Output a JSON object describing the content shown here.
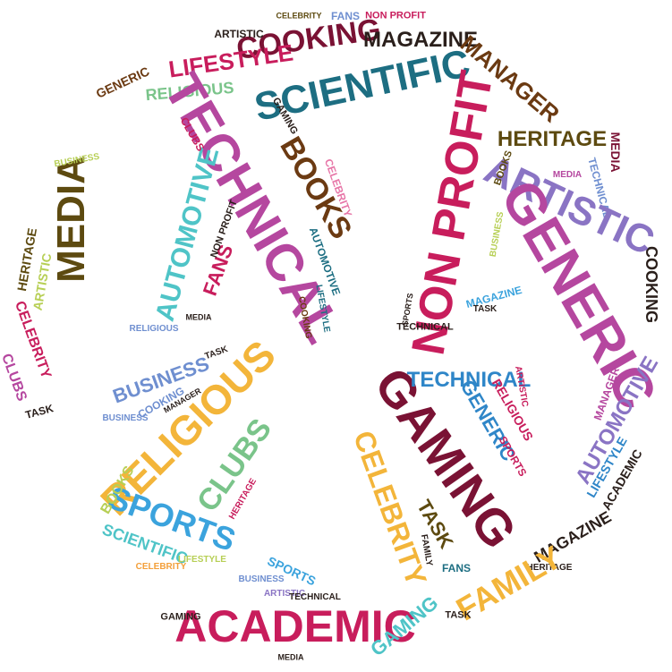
{
  "words": {
    "gaming": "GAMING",
    "academic": "ACADEMIC",
    "family": "FAMILY",
    "sports": "SPORTS",
    "religious": "RELIGIOUS",
    "clubs": "CLUBS",
    "business": "BUSINESS",
    "scientific": "SCIENTIFIC",
    "technical": "TECHNICAL",
    "generic": "GENERIC",
    "non_profit": "NON PROFIT",
    "artistic": "ARTISTIC",
    "heritage": "HERITAGE",
    "manager": "MANAGER",
    "magazine": "MAGAZINE",
    "cooking": "COOKING",
    "lifestyle": "LIFESTYLE",
    "books": "BOOKS",
    "automotive": "AUTOMOTIVE",
    "fans": "FANS",
    "media": "MEDIA",
    "celebrity": "CELEBRITY",
    "task": "TASK"
  },
  "colors": {
    "maroon": "#7a1234",
    "crimson": "#c81d5c",
    "magenta": "#b5479f",
    "lilac": "#8a74c4",
    "periwinkle": "#6f8fd0",
    "blue": "#2f86c8",
    "sky": "#3ba3dd",
    "teal": "#1d6e82",
    "aqua": "#4fc4c7",
    "green": "#7ac48a",
    "lime": "#b7cf55",
    "gold": "#f3b53a",
    "olive": "#5d4a10",
    "brown": "#6b3a12",
    "dark": "#2a1f1b",
    "orange": "#f39f3a",
    "pink": "#e777a8"
  }
}
